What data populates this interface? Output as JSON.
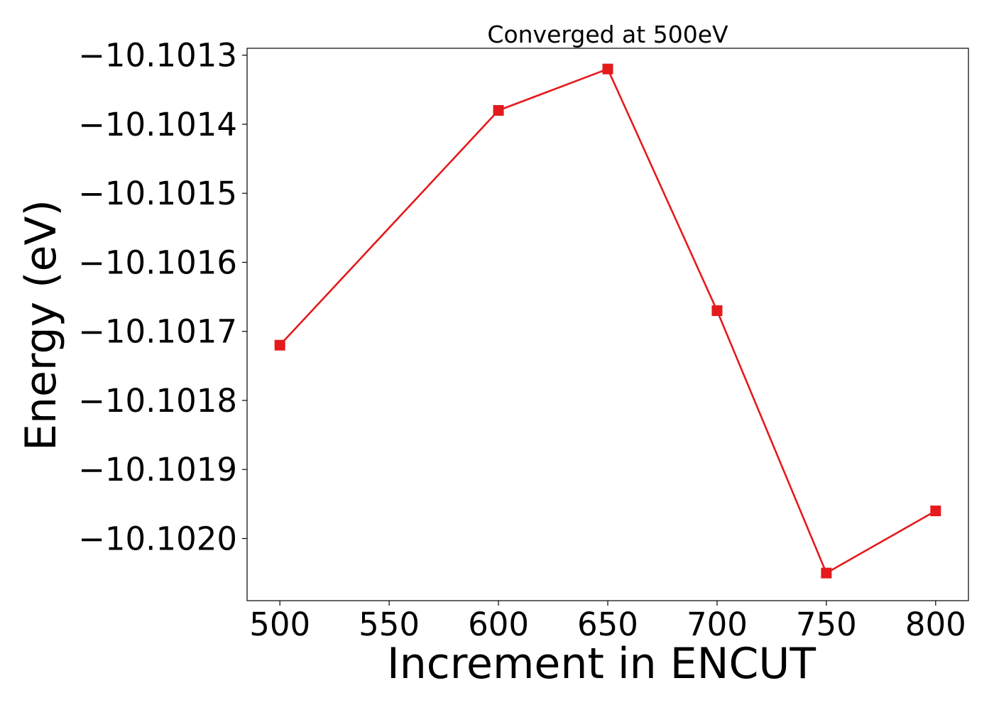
{
  "chart_data": {
    "type": "line",
    "title": "Converged at 500eV",
    "xlabel": "Increment in ENCUT",
    "ylabel": "Energy (eV)",
    "x": [
      500,
      600,
      650,
      700,
      750,
      800
    ],
    "series": [
      {
        "values": [
          -10.10172,
          -10.10138,
          -10.10132,
          -10.10167,
          -10.10205,
          -10.10196
        ],
        "color": "#e41a1c",
        "marker": "square"
      }
    ],
    "xlim": [
      485,
      815
    ],
    "ylim": [
      -10.10209,
      -10.10129
    ],
    "x_ticks": [
      500,
      550,
      600,
      650,
      700,
      750,
      800
    ],
    "x_tick_labels": [
      "500",
      "550",
      "600",
      "650",
      "700",
      "750",
      "800"
    ],
    "y_ticks": [
      -10.1013,
      -10.1014,
      -10.1015,
      -10.1016,
      -10.1017,
      -10.1018,
      -10.1019,
      -10.102
    ],
    "y_tick_labels": [
      "−10.1013",
      "−10.1014",
      "−10.1015",
      "−10.1016",
      "−10.1017",
      "−10.1018",
      "−10.1019",
      "−10.1020"
    ],
    "grid": false,
    "legend": "none"
  }
}
